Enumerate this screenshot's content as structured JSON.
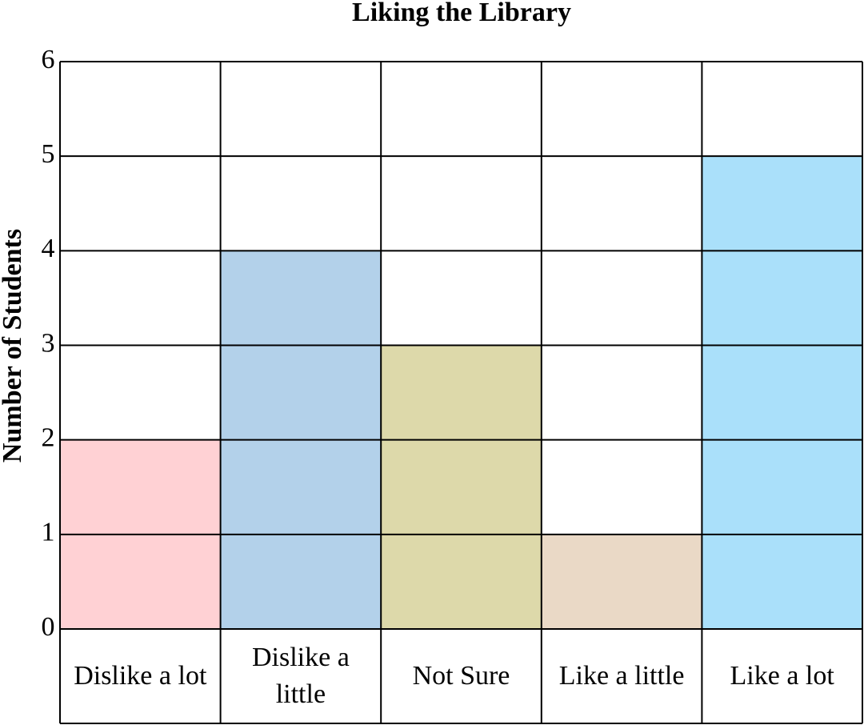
{
  "chart_data": {
    "type": "bar",
    "title": "Liking the Library",
    "y_label": "Number of Students",
    "categories": [
      "Dislike a lot",
      "Dislike a little",
      "Not Sure",
      "Like a little",
      "Like a lot"
    ],
    "values": [
      2,
      4,
      3,
      1,
      5
    ],
    "colors": [
      "#ffd1d4",
      "#b3d1ea",
      "#ddd9aa",
      "#ead9c6",
      "#aae0fa"
    ],
    "ylim": [
      0,
      6
    ],
    "yticks": [
      0,
      1,
      2,
      3,
      4,
      5,
      6
    ],
    "grid": true
  }
}
